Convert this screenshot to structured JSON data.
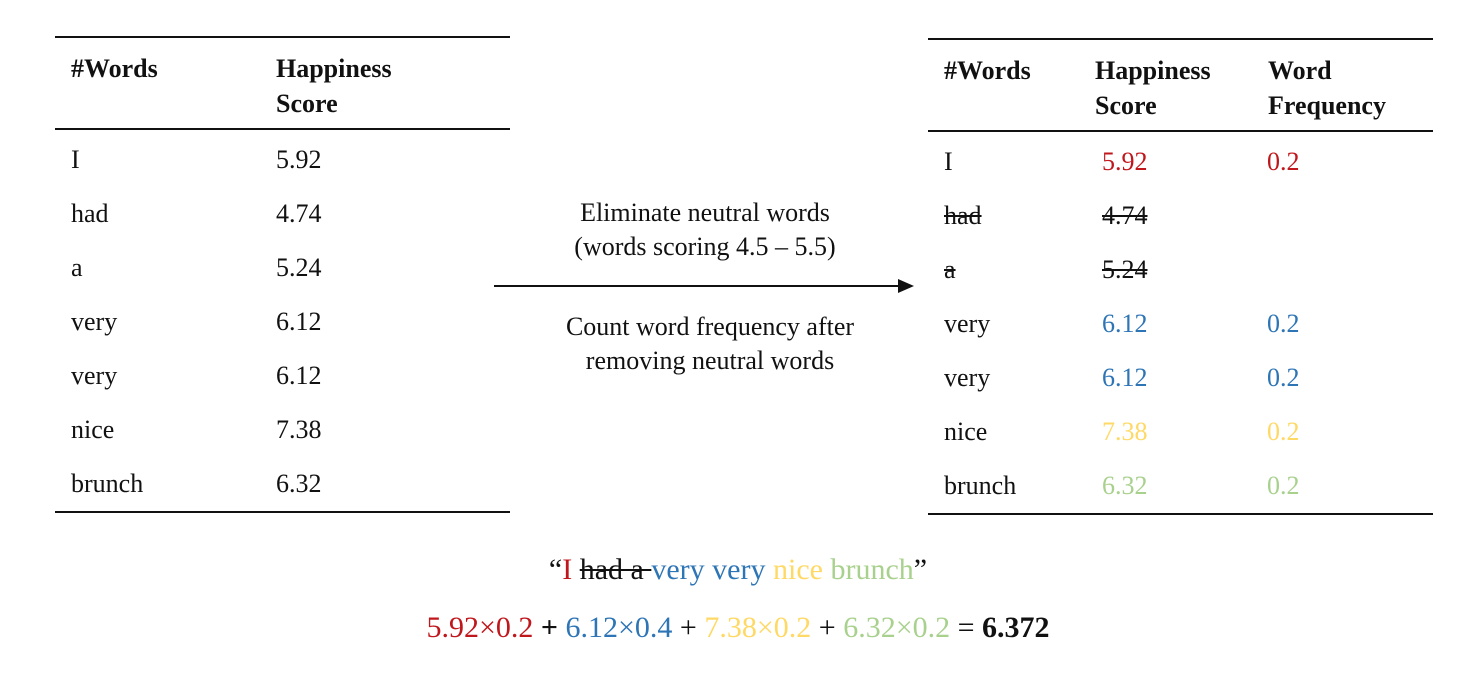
{
  "colors": {
    "red": "#c0171d",
    "blue": "#2e75b6",
    "yellow": "#ffd966",
    "green": "#a9d18e",
    "black": "#111111"
  },
  "left_table": {
    "headers": {
      "words": "#Words",
      "score_line1": "Happiness",
      "score_line2": "Score"
    },
    "rows": [
      {
        "word": "I",
        "score": "5.92"
      },
      {
        "word": "had",
        "score": "4.74"
      },
      {
        "word": "a",
        "score": "5.24"
      },
      {
        "word": "very",
        "score": "6.12"
      },
      {
        "word": "very",
        "score": "6.12"
      },
      {
        "word": "nice",
        "score": "7.38"
      },
      {
        "word": "brunch",
        "score": "6.32"
      }
    ]
  },
  "arrow": {
    "label_top_line1": "Eliminate neutral words",
    "label_top_line2": "(words scoring 4.5 – 5.5)",
    "label_bottom_line1": "Count word frequency after",
    "label_bottom_line2": "removing neutral words"
  },
  "right_table": {
    "headers": {
      "words": "#Words",
      "score_line1": "Happiness",
      "score_line2": "Score",
      "freq_line1": "Word",
      "freq_line2": "Frequency"
    },
    "rows": [
      {
        "word": "I",
        "score": "5.92",
        "freq": "0.2",
        "color": "red",
        "struck": false
      },
      {
        "word": "had",
        "score": "4.74",
        "freq": "",
        "color": "black",
        "struck": true
      },
      {
        "word": "a",
        "score": "5.24",
        "freq": "",
        "color": "black",
        "struck": true
      },
      {
        "word": "very",
        "score": "6.12",
        "freq": "0.2",
        "color": "blue",
        "struck": false
      },
      {
        "word": "very",
        "score": "6.12",
        "freq": "0.2",
        "color": "blue",
        "struck": false
      },
      {
        "word": "nice",
        "score": "7.38",
        "freq": "0.2",
        "color": "yellow",
        "struck": false
      },
      {
        "word": "brunch",
        "score": "6.32",
        "freq": "0.2",
        "color": "green",
        "struck": false
      }
    ]
  },
  "sentence": {
    "open_quote": "“",
    "w_i": "I ",
    "w_struck": "had a ",
    "w_very": "very very ",
    "w_nice": " nice ",
    "w_brunch": "brunch",
    "close_quote": "”"
  },
  "formula": {
    "t1": "5.92×0.2",
    "op1": " + ",
    "t2": "6.12×0.4",
    "op2": " + ",
    "t3": "7.38×0.2",
    "op3": " + ",
    "t4": "6.32×0.2",
    "eq": " = ",
    "result": "6.372"
  }
}
